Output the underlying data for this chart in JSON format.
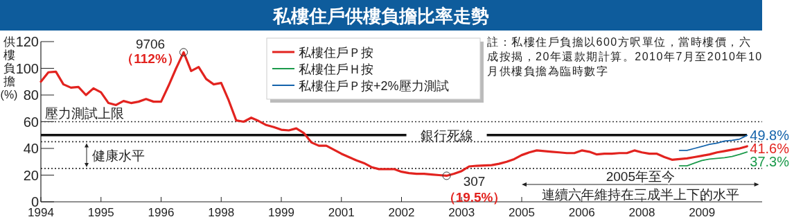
{
  "chart_data": {
    "type": "line",
    "title": "私樓住戶供樓負擔比率走勢",
    "ylabel": "供樓負擔(%)",
    "legend": "top",
    "marker": "none",
    "grid": false,
    "categories": [
      "1994",
      null,
      null,
      null,
      null,
      null,
      null,
      null,
      "1995",
      null,
      null,
      null,
      null,
      null,
      null,
      null,
      "1996",
      null,
      null,
      null,
      null,
      null,
      null,
      null,
      "1998",
      null,
      null,
      null,
      null,
      null,
      null,
      null,
      "1999",
      null,
      null,
      null,
      null,
      null,
      null,
      null,
      "2001",
      null,
      null,
      null,
      null,
      null,
      null,
      null,
      "2002",
      null,
      null,
      null,
      null,
      null,
      null,
      null,
      "2003",
      null,
      null,
      null,
      null,
      null,
      null,
      null,
      "2005",
      null,
      null,
      null,
      null,
      null,
      null,
      null,
      "2006",
      null,
      null,
      null,
      null,
      null,
      null,
      null,
      "2008",
      null,
      null,
      null,
      null,
      null,
      null,
      null,
      "2009",
      null,
      null,
      null,
      null,
      null,
      null,
      null,
      null
    ],
    "ylim": [
      0,
      120
    ],
    "yticks": [
      0,
      20,
      40,
      60,
      80,
      100,
      120
    ],
    "series": [
      {
        "name": "私樓住戶Ｐ按",
        "color": "#e2231f",
        "values": [
          90,
          97,
          97.5,
          88,
          85.5,
          86,
          80,
          85,
          82,
          74,
          72.5,
          75.5,
          74,
          75,
          77,
          75,
          75,
          87,
          100,
          112,
          98,
          101,
          92,
          88,
          89,
          76,
          61,
          60,
          63,
          60.5,
          57.5,
          56,
          54,
          53.5,
          55,
          51.5,
          44.5,
          42,
          42,
          39,
          36,
          33.5,
          31,
          29,
          26,
          24.5,
          24.5,
          24.5,
          22.5,
          21.5,
          21,
          21,
          20.5,
          20,
          19.5,
          21,
          23,
          26.5,
          27,
          27.2,
          27.5,
          28.5,
          30,
          32,
          35,
          37,
          38.5,
          38,
          37.5,
          37,
          36.5,
          36.5,
          38.5,
          37.5,
          35.5,
          36,
          36,
          36.5,
          36.5,
          38.5,
          37,
          36,
          36,
          33.5,
          31.5,
          32,
          32.5,
          33.5,
          34.5,
          35.5,
          37,
          38,
          39,
          40,
          41.6,
          null,
          null
        ],
        "value_labels": [
          null,
          null,
          null,
          null,
          null,
          null,
          null,
          null,
          null,
          null,
          null,
          null,
          null,
          null,
          null,
          null,
          null,
          null,
          null,
          null,
          null,
          null,
          null,
          null,
          null,
          null,
          null,
          null,
          null,
          null,
          null,
          null,
          null,
          null,
          null,
          null,
          null,
          null,
          null,
          null,
          null,
          null,
          null,
          null,
          null,
          null,
          null,
          null,
          null,
          null,
          null,
          null,
          null,
          null,
          null,
          null,
          null,
          null,
          null,
          null,
          null,
          null,
          null,
          null,
          null,
          null,
          null,
          null,
          null,
          null,
          null,
          null,
          null,
          null,
          null,
          null,
          null,
          null,
          null,
          null,
          null,
          null,
          null,
          null,
          null,
          null,
          null,
          null,
          null,
          null,
          null,
          null,
          null,
          null,
          "41.6%",
          null,
          null
        ]
      },
      {
        "name": "私樓住戶Ｈ按",
        "color": "#1b9a4b",
        "values": [
          null,
          null,
          null,
          null,
          null,
          null,
          null,
          null,
          null,
          null,
          null,
          null,
          null,
          null,
          null,
          null,
          null,
          null,
          null,
          null,
          null,
          null,
          null,
          null,
          null,
          null,
          null,
          null,
          null,
          null,
          null,
          null,
          null,
          null,
          null,
          null,
          null,
          null,
          null,
          null,
          null,
          null,
          null,
          null,
          null,
          null,
          null,
          null,
          null,
          null,
          null,
          null,
          null,
          null,
          null,
          null,
          null,
          null,
          null,
          null,
          null,
          null,
          null,
          null,
          null,
          null,
          null,
          null,
          null,
          null,
          null,
          null,
          null,
          null,
          null,
          null,
          null,
          null,
          null,
          null,
          null,
          null,
          null,
          null,
          null,
          27,
          27,
          29,
          31,
          32,
          32.5,
          33,
          34,
          35.5,
          37.3,
          null,
          null
        ],
        "value_labels": [
          null,
          null,
          null,
          null,
          null,
          null,
          null,
          null,
          null,
          null,
          null,
          null,
          null,
          null,
          null,
          null,
          null,
          null,
          null,
          null,
          null,
          null,
          null,
          null,
          null,
          null,
          null,
          null,
          null,
          null,
          null,
          null,
          null,
          null,
          null,
          null,
          null,
          null,
          null,
          null,
          null,
          null,
          null,
          null,
          null,
          null,
          null,
          null,
          null,
          null,
          null,
          null,
          null,
          null,
          null,
          null,
          null,
          null,
          null,
          null,
          null,
          null,
          null,
          null,
          null,
          null,
          null,
          null,
          null,
          null,
          null,
          null,
          null,
          null,
          null,
          null,
          null,
          null,
          null,
          null,
          null,
          null,
          null,
          null,
          null,
          null,
          null,
          null,
          null,
          null,
          null,
          null,
          null,
          null,
          "37.3%",
          null,
          null
        ]
      },
      {
        "name": "私樓住戶Ｐ按+2%壓力測試",
        "color": "#1463ab",
        "values": [
          null,
          null,
          null,
          null,
          null,
          null,
          null,
          null,
          null,
          null,
          null,
          null,
          null,
          null,
          null,
          null,
          null,
          null,
          null,
          null,
          null,
          null,
          null,
          null,
          null,
          null,
          null,
          null,
          null,
          null,
          null,
          null,
          null,
          null,
          null,
          null,
          null,
          null,
          null,
          null,
          null,
          null,
          null,
          null,
          null,
          null,
          null,
          null,
          null,
          null,
          null,
          null,
          null,
          null,
          null,
          null,
          null,
          null,
          null,
          null,
          null,
          null,
          null,
          null,
          null,
          null,
          null,
          null,
          null,
          null,
          null,
          null,
          null,
          null,
          null,
          null,
          null,
          null,
          null,
          null,
          null,
          null,
          null,
          null,
          null,
          38.5,
          38.5,
          40,
          41.5,
          43,
          44,
          45.5,
          46,
          47,
          49.8,
          null,
          null
        ],
        "value_labels": [
          null,
          null,
          null,
          null,
          null,
          null,
          null,
          null,
          null,
          null,
          null,
          null,
          null,
          null,
          null,
          null,
          null,
          null,
          null,
          null,
          null,
          null,
          null,
          null,
          null,
          null,
          null,
          null,
          null,
          null,
          null,
          null,
          null,
          null,
          null,
          null,
          null,
          null,
          null,
          null,
          null,
          null,
          null,
          null,
          null,
          null,
          null,
          null,
          null,
          null,
          null,
          null,
          null,
          null,
          null,
          null,
          null,
          null,
          null,
          null,
          null,
          null,
          null,
          null,
          null,
          null,
          null,
          null,
          null,
          null,
          null,
          null,
          null,
          null,
          null,
          null,
          null,
          null,
          null,
          null,
          null,
          null,
          null,
          null,
          null,
          null,
          null,
          null,
          null,
          null,
          null,
          null,
          null,
          null,
          "49.8%",
          null,
          null
        ]
      }
    ],
    "ref_lines": [
      {
        "axis": "y",
        "value": 60,
        "label": "壓力測試上限",
        "line_style": "dotted",
        "color": "#333333"
      },
      {
        "axis": "y",
        "value": 50,
        "label": "銀行死線",
        "line_style": "solid",
        "color": "#111111"
      },
      {
        "axis": "y",
        "value": 45,
        "line_style": "dotted",
        "color": "#333333"
      },
      {
        "axis": "y",
        "value": 25,
        "line_style": "dotted",
        "color": "#333333"
      }
    ],
    "annotations": [
      "9706",
      "（112%）",
      "307",
      "（19.5%）",
      "健康水平",
      "註：私樓住戶負擔以600方呎單位，當時樓價，六成按揭，20年還款期計算。2010年7月至2010年10月供樓負擔為臨時數字",
      "2005年至今",
      "連續六年維持在三成半上下的水平"
    ]
  }
}
